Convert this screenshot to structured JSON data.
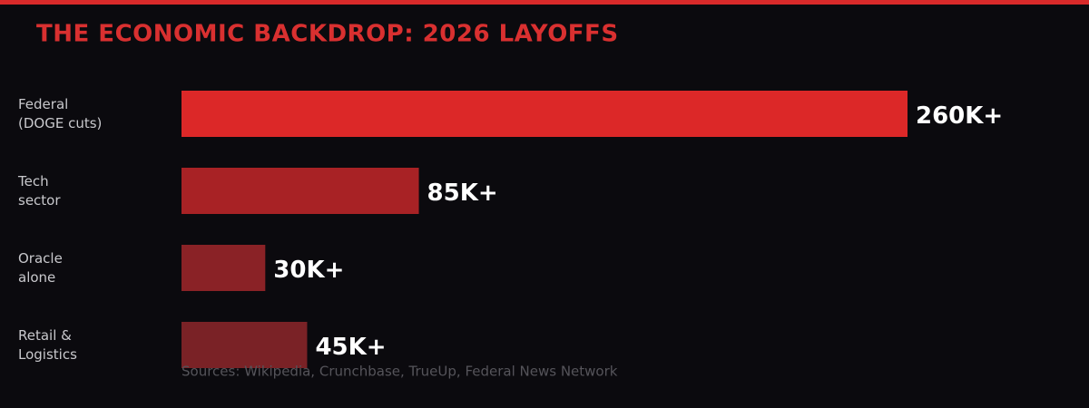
{
  "chart_data": {
    "type": "bar",
    "orientation": "horizontal",
    "title": "THE ECONOMIC BACKDROP: 2026 LAYOFFS",
    "categories": [
      "Federal\n(DOGE cuts)",
      "Tech\nsector",
      "Oracle\nalone",
      "Retail &\nLogistics"
    ],
    "values": [
      260,
      85,
      30,
      45
    ],
    "value_labels": [
      "260K+",
      "85K+",
      "30K+",
      "45K+"
    ],
    "colors": [
      "#dc2828",
      "#a82225",
      "#8a2226",
      "#7a2226"
    ],
    "source": "Sources: Wikipedia, Crunchbase, TrueUp, Federal News Network"
  }
}
